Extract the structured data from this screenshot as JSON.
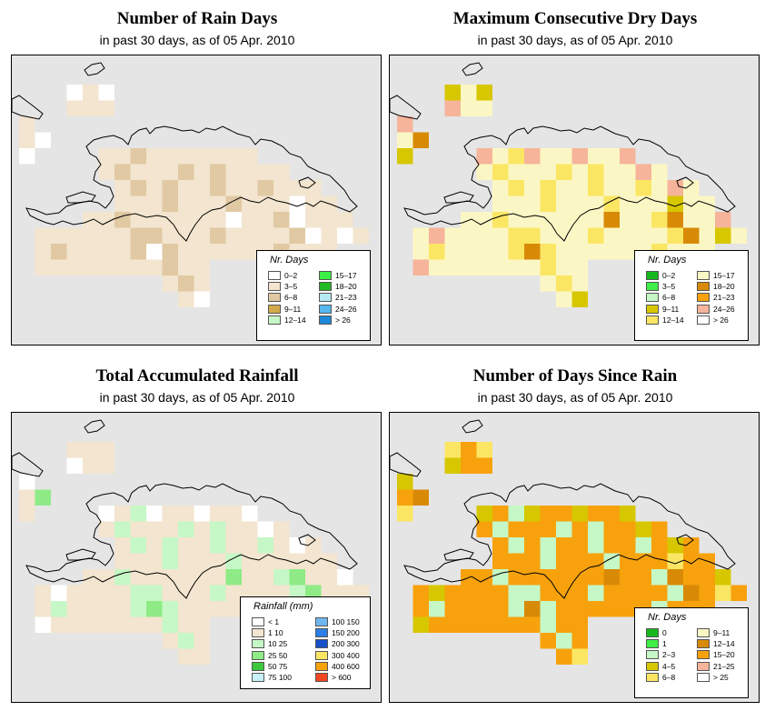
{
  "panels": [
    {
      "title": "Number of Rain Days",
      "subtitle": "in past 30 days, as of  05 Apr. 2010",
      "legend": {
        "title": "Nr. Days",
        "items": [
          {
            "label": "0–2",
            "color": "#ffffff"
          },
          {
            "label": "3–5",
            "color": "#f3e5cf"
          },
          {
            "label": "6–8",
            "color": "#e0c9a3"
          },
          {
            "label": "9–11",
            "color": "#d2aa4a"
          },
          {
            "label": "12–14",
            "color": "#c6f7c6"
          },
          {
            "label": "15–17",
            "color": "#3af046"
          },
          {
            "label": "18–20",
            "color": "#22b822"
          },
          {
            "label": "21–23",
            "color": "#b6e8f2"
          },
          {
            "label": "24–26",
            "color": "#56b8ee"
          },
          {
            "label": "> 26",
            "color": "#1e88d8"
          }
        ]
      }
    },
    {
      "title": "Maximum Consecutive Dry Days",
      "subtitle": "in past 30 days, as of  05 Apr. 2010",
      "legend": {
        "title": "Nr. Days",
        "items": [
          {
            "label": "0–2",
            "color": "#16b81e"
          },
          {
            "label": "3–5",
            "color": "#3fee46"
          },
          {
            "label": "6–8",
            "color": "#c6f7c6"
          },
          {
            "label": "9–11",
            "color": "#d7c700"
          },
          {
            "label": "12–14",
            "color": "#fbe664"
          },
          {
            "label": "15–17",
            "color": "#fbf7c4"
          },
          {
            "label": "18–20",
            "color": "#d88a06"
          },
          {
            "label": "21–23",
            "color": "#f7a20d"
          },
          {
            "label": "24–26",
            "color": "#f6b49b"
          },
          {
            "label": "> 26",
            "color": "#ffffff"
          }
        ]
      }
    },
    {
      "title": "Total Accumulated Rainfall",
      "subtitle": "in past 30 days, as of  05 Apr. 2010",
      "legend": {
        "title": "Rainfall (mm)",
        "items": [
          {
            "label": "< 1",
            "color": "#ffffff"
          },
          {
            "label": "1    10",
            "color": "#f3e5cf"
          },
          {
            "label": "10    25",
            "color": "#c6f7c6"
          },
          {
            "label": "25    50",
            "color": "#8eeb86"
          },
          {
            "label": "50    75",
            "color": "#3ec83e"
          },
          {
            "label": "75   100",
            "color": "#c8f0f8"
          },
          {
            "label": "100   150",
            "color": "#6fb6ee"
          },
          {
            "label": "150   200",
            "color": "#2c7fe8"
          },
          {
            "label": "200   300",
            "color": "#1650c8"
          },
          {
            "label": "300   400",
            "color": "#fbe664"
          },
          {
            "label": "400   600",
            "color": "#f7a20d"
          },
          {
            "label": "> 600",
            "color": "#f24522"
          }
        ]
      }
    },
    {
      "title": "Number of Days Since Rain",
      "subtitle": "in past 30 days, as of  05 Apr. 2010",
      "legend": {
        "title": "Nr. Days",
        "items": [
          {
            "label": "0",
            "color": "#16b81e"
          },
          {
            "label": "1",
            "color": "#3fee46"
          },
          {
            "label": "2–3",
            "color": "#c6f7c6"
          },
          {
            "label": "4–5",
            "color": "#d7c700"
          },
          {
            "label": "6–8",
            "color": "#fbe664"
          },
          {
            "label": "9–11",
            "color": "#fbf7c4"
          },
          {
            "label": "12–14",
            "color": "#d88a06"
          },
          {
            "label": "15–20",
            "color": "#f7a20d"
          },
          {
            "label": "21–25",
            "color": "#f6b49b"
          },
          {
            "label": "> 25",
            "color": "#ffffff"
          }
        ]
      }
    }
  ]
}
